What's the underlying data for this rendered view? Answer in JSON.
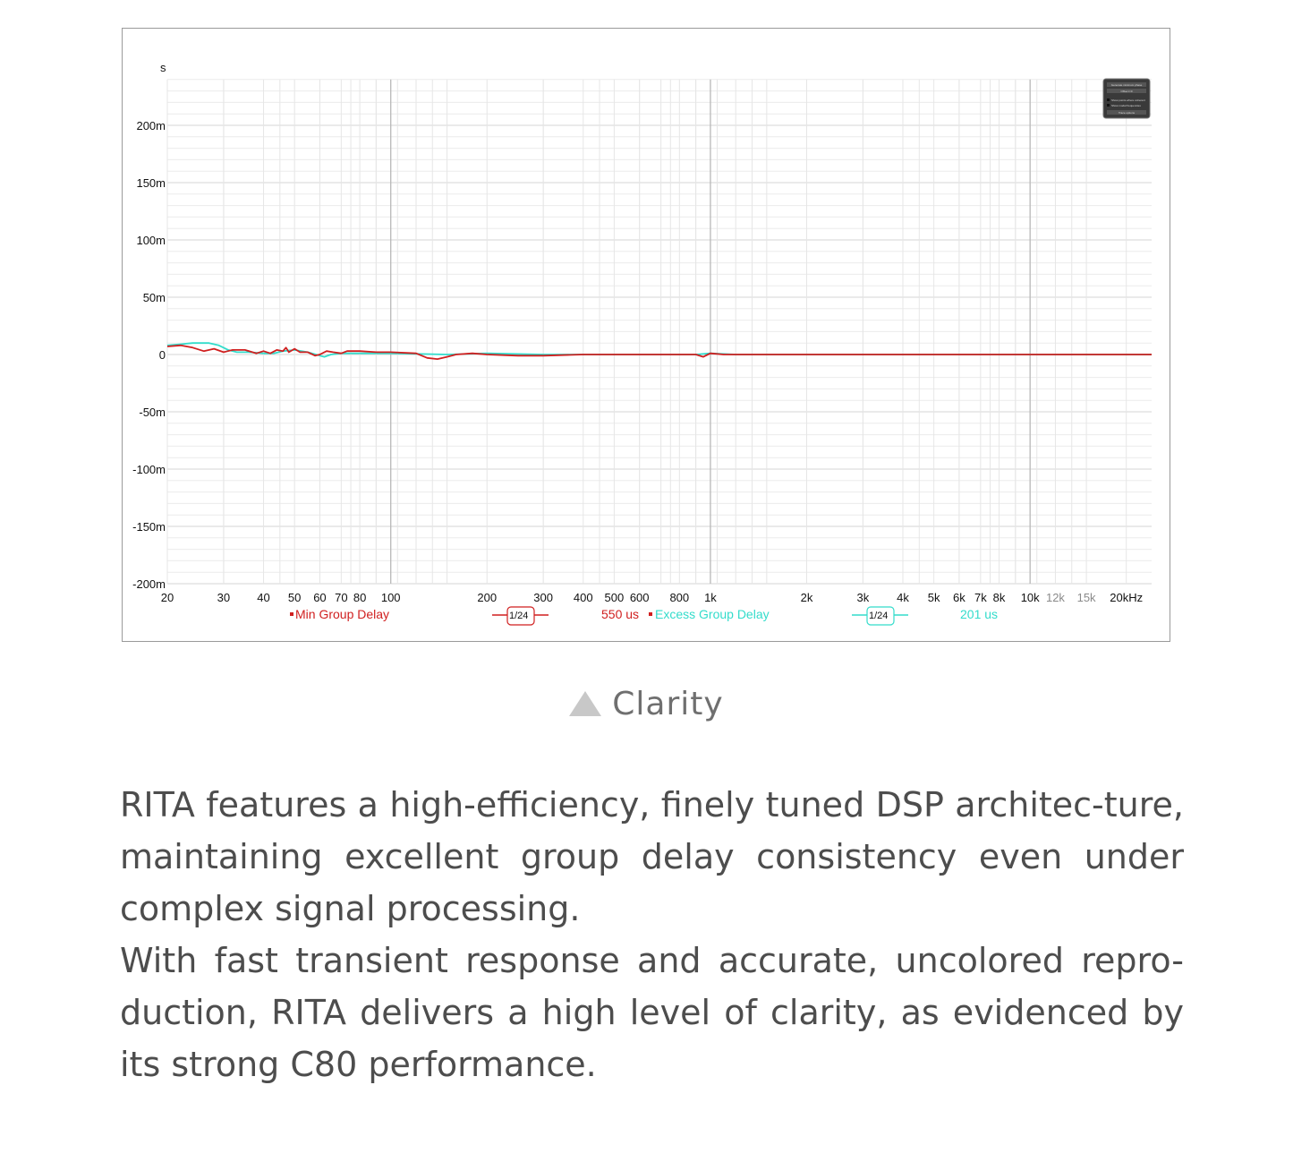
{
  "chart_data": {
    "type": "line",
    "ylabel": "s",
    "xunit": "kHz",
    "xscale": "log",
    "xlim": [
      20,
      24000
    ],
    "ylim": [
      -200,
      240
    ],
    "grid": true,
    "y_ticks": [
      {
        "v": 200,
        "label": "200m"
      },
      {
        "v": 150,
        "label": "150m"
      },
      {
        "v": 100,
        "label": "100m"
      },
      {
        "v": 50,
        "label": "50m"
      },
      {
        "v": 0,
        "label": "0"
      },
      {
        "v": -50,
        "label": "-50m"
      },
      {
        "v": -100,
        "label": "-100m"
      },
      {
        "v": -150,
        "label": "-150m"
      },
      {
        "v": -200,
        "label": "-200m"
      }
    ],
    "x_ticks": [
      {
        "v": 20,
        "label": "20"
      },
      {
        "v": 30,
        "label": "30"
      },
      {
        "v": 40,
        "label": "40"
      },
      {
        "v": 50,
        "label": "50"
      },
      {
        "v": 60,
        "label": "60"
      },
      {
        "v": 70,
        "label": "70"
      },
      {
        "v": 80,
        "label": "80"
      },
      {
        "v": 100,
        "label": "100"
      },
      {
        "v": 200,
        "label": "200"
      },
      {
        "v": 300,
        "label": "300"
      },
      {
        "v": 400,
        "label": "400"
      },
      {
        "v": 500,
        "label": "500"
      },
      {
        "v": 600,
        "label": "600"
      },
      {
        "v": 800,
        "label": "800"
      },
      {
        "v": 1000,
        "label": "1k"
      },
      {
        "v": 2000,
        "label": "2k"
      },
      {
        "v": 3000,
        "label": "3k"
      },
      {
        "v": 4000,
        "label": "4k"
      },
      {
        "v": 5000,
        "label": "5k"
      },
      {
        "v": 6000,
        "label": "6k"
      },
      {
        "v": 7000,
        "label": "7k"
      },
      {
        "v": 8000,
        "label": "8k"
      },
      {
        "v": 10000,
        "label": "10k"
      },
      {
        "v": 12000,
        "label": "12k",
        "muted": true
      },
      {
        "v": 15000,
        "label": "15k",
        "muted": true
      },
      {
        "v": 20000,
        "label": "20kHz"
      }
    ],
    "series": [
      {
        "name": "Min Group Delay",
        "color": "#d01f1f",
        "smoothing": "1/24",
        "value_label": "550 us",
        "points": [
          [
            20,
            7
          ],
          [
            22,
            8
          ],
          [
            24,
            6
          ],
          [
            26,
            3
          ],
          [
            28,
            5
          ],
          [
            30,
            2
          ],
          [
            32,
            4
          ],
          [
            35,
            4
          ],
          [
            38,
            1
          ],
          [
            40,
            3
          ],
          [
            42,
            1
          ],
          [
            44,
            4
          ],
          [
            46,
            3
          ],
          [
            47,
            6
          ],
          [
            48,
            2
          ],
          [
            50,
            5
          ],
          [
            52,
            2
          ],
          [
            55,
            2
          ],
          [
            58,
            -1
          ],
          [
            60,
            0
          ],
          [
            63,
            3
          ],
          [
            66,
            2
          ],
          [
            70,
            1
          ],
          [
            73,
            3
          ],
          [
            80,
            3
          ],
          [
            90,
            2
          ],
          [
            100,
            2
          ],
          [
            120,
            1
          ],
          [
            130,
            -3
          ],
          [
            140,
            -4
          ],
          [
            150,
            -2
          ],
          [
            160,
            0
          ],
          [
            180,
            1
          ],
          [
            200,
            0
          ],
          [
            250,
            -1
          ],
          [
            300,
            -1
          ],
          [
            400,
            0
          ],
          [
            500,
            0
          ],
          [
            600,
            0
          ],
          [
            700,
            0
          ],
          [
            800,
            0
          ],
          [
            900,
            0
          ],
          [
            950,
            -2
          ],
          [
            1000,
            1
          ],
          [
            1100,
            0
          ],
          [
            2000,
            0
          ],
          [
            5000,
            0
          ],
          [
            10000,
            0
          ],
          [
            24000,
            0
          ]
        ]
      },
      {
        "name": "Excess Group Delay",
        "color": "#33dccb",
        "smoothing": "1/24",
        "value_label": "201 us",
        "points": [
          [
            20,
            8
          ],
          [
            22,
            9
          ],
          [
            24,
            10
          ],
          [
            26,
            10
          ],
          [
            27,
            10
          ],
          [
            29,
            8
          ],
          [
            31,
            4
          ],
          [
            33,
            2
          ],
          [
            36,
            2
          ],
          [
            40,
            1
          ],
          [
            43,
            1
          ],
          [
            46,
            3
          ],
          [
            50,
            4
          ],
          [
            55,
            2
          ],
          [
            60,
            -1
          ],
          [
            62,
            -2
          ],
          [
            65,
            0
          ],
          [
            70,
            1
          ],
          [
            80,
            1
          ],
          [
            100,
            1
          ],
          [
            150,
            0
          ],
          [
            200,
            1
          ],
          [
            300,
            0
          ],
          [
            400,
            0
          ],
          [
            500,
            0
          ],
          [
            600,
            0
          ],
          [
            700,
            0
          ],
          [
            800,
            0
          ],
          [
            900,
            0
          ],
          [
            1000,
            1
          ],
          [
            1200,
            0
          ],
          [
            2000,
            0
          ],
          [
            5000,
            0
          ],
          [
            10000,
            0
          ],
          [
            24000,
            0
          ]
        ]
      }
    ]
  },
  "panel": {
    "items": [
      "Generate minimum phase",
      "Offset t=0",
      "Show points where coherent",
      "Show modal frequencies",
      "Trace options"
    ]
  },
  "caption": {
    "text": "Clarity",
    "icon": "triangle-icon"
  },
  "body": {
    "paragraph1": "RITA features a high-efficiency, finely tuned DSP architec-ture, maintaining excellent group delay consistency even under complex signal processing.",
    "paragraph2": "With fast transient response and accurate, uncolored repro-duction, RITA delivers a high level of clarity, as evidenced by its strong C80 performance."
  }
}
